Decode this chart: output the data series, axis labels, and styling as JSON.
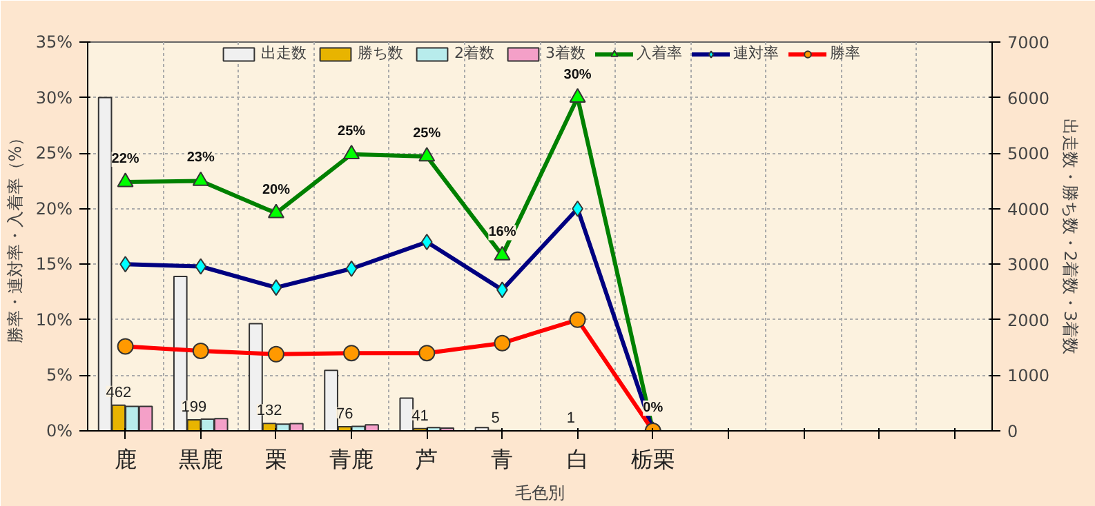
{
  "chart_data": {
    "type": "bar",
    "xlabel": "毛色別",
    "ylabel": "勝率・連対率・入着率（%）",
    "y2label": "出走数・勝ち数・2着数・3着数",
    "categories": [
      "鹿",
      "黒鹿",
      "栗",
      "青鹿",
      "芦",
      "青",
      "白",
      "栃栗",
      null,
      null,
      null,
      null
    ],
    "ylim": [
      0,
      35
    ],
    "yticks": [
      {
        "value": 0,
        "label": "0%"
      },
      {
        "value": 5,
        "label": "5%"
      },
      {
        "value": 10,
        "label": "10%"
      },
      {
        "value": 15,
        "label": "15%"
      },
      {
        "value": 20,
        "label": "20%"
      },
      {
        "value": 25,
        "label": "25%"
      },
      {
        "value": 30,
        "label": "30%"
      },
      {
        "value": 35,
        "label": "35%"
      }
    ],
    "y2lim": [
      0,
      7000
    ],
    "y2ticks": [
      0,
      1000,
      2000,
      3000,
      4000,
      5000,
      6000,
      7000
    ],
    "grid": true,
    "legend": "top",
    "series": [
      {
        "name": "出走数",
        "axis": "y2",
        "color": "#f0f0f0",
        "values": [
          6000,
          2780,
          1930,
          1090,
          590,
          60,
          null,
          null,
          null,
          null,
          null,
          null
        ]
      },
      {
        "name": "勝ち数",
        "axis": "y2",
        "color": "#e8b400",
        "values": [
          462,
          199,
          132,
          76,
          41,
          5,
          1,
          0,
          null,
          null,
          null,
          null
        ],
        "value_labels": [
          "462",
          "199",
          "132",
          "76",
          "41",
          "5",
          "1",
          null,
          null,
          null,
          null,
          null
        ]
      },
      {
        "name": "2着数",
        "axis": "y2",
        "color": "#b8ecec",
        "values": [
          440,
          210,
          120,
          80,
          60,
          0,
          0,
          0,
          null,
          null,
          null,
          null
        ]
      },
      {
        "name": "3着数",
        "axis": "y2",
        "color": "#f4a0c8",
        "values": [
          440,
          220,
          130,
          110,
          50,
          0,
          0,
          0,
          null,
          null,
          null,
          null
        ]
      },
      {
        "name": "入着率",
        "type": "line",
        "marker": "triangle",
        "color": "#008000",
        "values": [
          22.4,
          22.5,
          19.6,
          24.9,
          24.7,
          15.8,
          30,
          0,
          null,
          null,
          null,
          null
        ],
        "value_labels": [
          "22%",
          "23%",
          "20%",
          "25%",
          "25%",
          "16%",
          "30%",
          "0%",
          null,
          null,
          null,
          null
        ]
      },
      {
        "name": "連対率",
        "type": "line",
        "marker": "diamond",
        "color": "#000080",
        "values": [
          15.0,
          14.8,
          12.9,
          14.6,
          17.0,
          12.7,
          20.0,
          0,
          null,
          null,
          null,
          null
        ]
      },
      {
        "name": "勝率",
        "type": "line",
        "marker": "circle",
        "color": "#ff0000",
        "values": [
          7.6,
          7.2,
          6.9,
          7.0,
          7.0,
          7.9,
          10.0,
          0,
          null,
          null,
          null,
          null
        ]
      }
    ]
  }
}
